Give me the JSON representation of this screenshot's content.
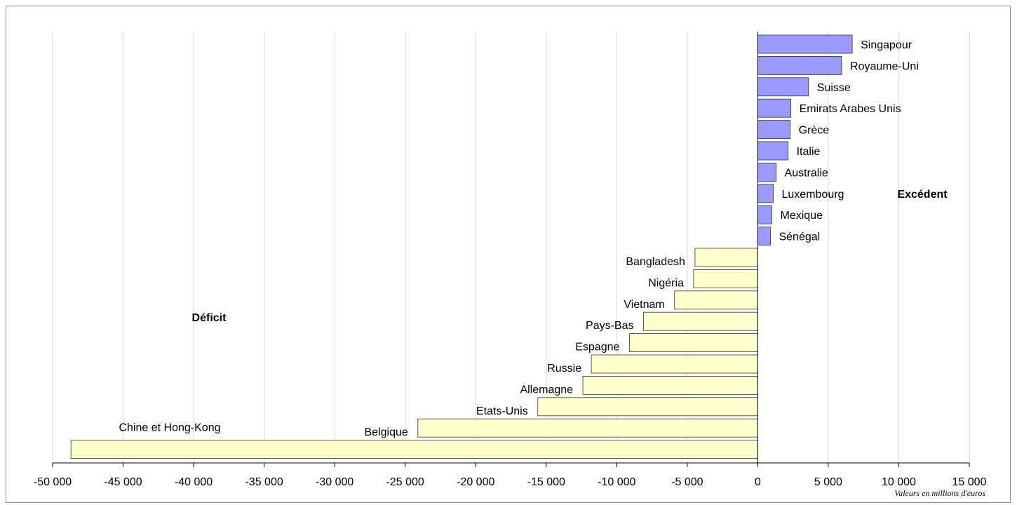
{
  "chart_data": {
    "type": "bar",
    "orientation": "horizontal",
    "categories": [
      "Singapour",
      "Royaume-Uni",
      "Suisse",
      "Emirats Arabes Unis",
      "Grèce",
      "Italie",
      "Australie",
      "Luxembourg",
      "Mexique",
      "Sénégal",
      "Bangladesh",
      "Nigéria",
      "Vietnam",
      "Pays-Bas",
      "Espagne",
      "Russie",
      "Allemagne",
      "Etats-Unis",
      "Belgique",
      "Chine et Hong-Kong"
    ],
    "values": [
      6700,
      5950,
      3600,
      2350,
      2300,
      2150,
      1300,
      1100,
      1000,
      900,
      -4450,
      -4550,
      -5900,
      -8100,
      -9100,
      -11800,
      -12400,
      -15600,
      -24100,
      -48700
    ],
    "positive_color": "#9999ff",
    "negative_color": "#ffffcc",
    "xlim": [
      -50000,
      15000
    ],
    "xticks": [
      -50000,
      -45000,
      -40000,
      -35000,
      -30000,
      -25000,
      -20000,
      -15000,
      -10000,
      -5000,
      0,
      5000,
      10000,
      15000
    ],
    "xtick_labels": [
      "-50 000",
      "-45 000",
      "-40 000",
      "-35 000",
      "-30 000",
      "-25 000",
      "-20 000",
      "-15 000",
      "-10 000",
      "-5 000",
      "0",
      "5 000",
      "10 000",
      "15 000"
    ],
    "xlabel": "Valeurs en millions d'euros",
    "annotations": {
      "surplus": "Excédent",
      "deficit": "Déficit"
    },
    "grid": true
  }
}
